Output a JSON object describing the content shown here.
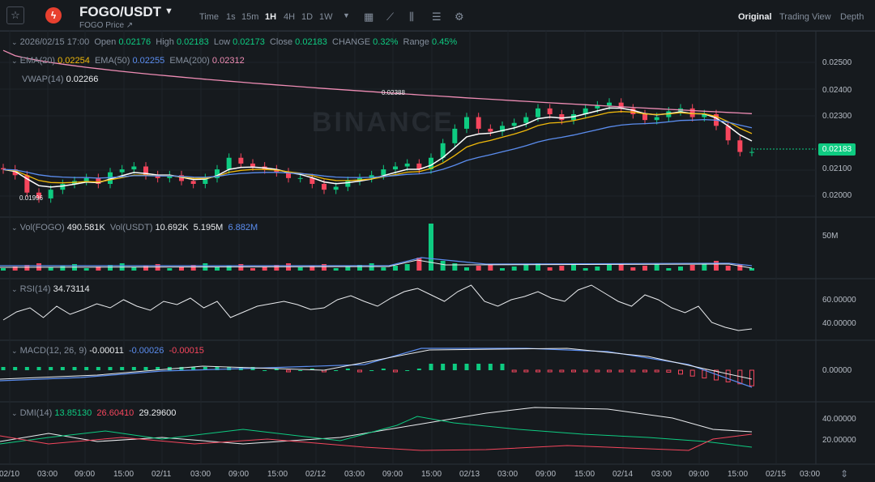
{
  "header": {
    "pair": "FOGO/USDT",
    "subtitle": "FOGO Price",
    "subtitle_link": "↗",
    "timeframes": [
      "Time",
      "1s",
      "15m",
      "1H",
      "4H",
      "1D",
      "1W"
    ],
    "active_timeframe": "1H",
    "views": [
      "Original",
      "Trading View",
      "Depth"
    ],
    "active_view": "Original"
  },
  "ohlc": {
    "date": "2026/02/15 17:00",
    "open_label": "Open",
    "open": "0.02176",
    "high_label": "High",
    "high": "0.02183",
    "low_label": "Low",
    "low": "0.02173",
    "close_label": "Close",
    "close": "0.02183",
    "change_label": "CHANGE",
    "change": "0.32%",
    "range_label": "Range",
    "range": "0.45%"
  },
  "ema": {
    "ema20_label": "EMA(20)",
    "ema20": "0.02254",
    "ema50_label": "EMA(50)",
    "ema50": "0.02255",
    "ema200_label": "EMA(200)",
    "ema200": "0.02312"
  },
  "vwap": {
    "label": "VWAP(14)",
    "value": "0.02266"
  },
  "volume": {
    "vol_label": "Vol(FOGO)",
    "vol_value": "490.581K",
    "usdt_label": "Vol(USDT)",
    "usdt_value": "10.692K",
    "ma1": "5.195M",
    "ma2": "6.882M",
    "axis_label": "50M"
  },
  "rsi": {
    "label": "RSI(14)",
    "value": "34.73114",
    "axis": [
      "60.00000",
      "40.00000"
    ]
  },
  "macd": {
    "label": "MACD(12, 26, 9)",
    "v1": "-0.00011",
    "v2": "-0.00026",
    "v3": "-0.00015",
    "axis": [
      "0.00000"
    ]
  },
  "dmi": {
    "label": "DMI(14)",
    "v1": "13.85130",
    "v2": "26.60410",
    "v3": "29.29600",
    "axis": [
      "40.00000",
      "20.00000"
    ]
  },
  "price_axis": [
    "0.02500",
    "0.02400",
    "0.02300",
    "0.02100",
    "0.02000"
  ],
  "last_price": "0.02183",
  "annotations": {
    "high": "0.02388",
    "low": "0.01996"
  },
  "watermark": "BINANCE",
  "time_axis": [
    "02/10",
    "03:00",
    "09:00",
    "15:00",
    "02/11",
    "03:00",
    "09:00",
    "15:00",
    "02/12",
    "03:00",
    "09:00",
    "15:00",
    "02/13",
    "03:00",
    "09:00",
    "15:00",
    "02/14",
    "03:00",
    "09:00",
    "15:00",
    "02/15",
    "03:00"
  ],
  "colors": {
    "up": "#0ecb81",
    "down": "#f6465d",
    "ema20": "#f0b90b",
    "ema50": "#5b8def",
    "ema200": "#ef8db5",
    "vwap": "#ffffff",
    "bg": "#161a1e"
  },
  "chart_data": {
    "type": "candlestick",
    "interval": "1H",
    "candles_approx": {
      "start": "02/10 00:00",
      "close_path": [
        0.0212,
        0.021,
        0.0204,
        0.0202,
        0.0205,
        0.0207,
        0.0208,
        0.0209,
        0.0207,
        0.0211,
        0.0212,
        0.0213,
        0.021,
        0.0209,
        0.021,
        0.0208,
        0.0207,
        0.0209,
        0.0212,
        0.0216,
        0.0214,
        0.0213,
        0.0212,
        0.0211,
        0.0209,
        0.0209,
        0.0207,
        0.0205,
        0.0206,
        0.0208,
        0.0209,
        0.021,
        0.0212,
        0.0213,
        0.0214,
        0.0212,
        0.0216,
        0.0221,
        0.0226,
        0.023,
        0.0226,
        0.0225,
        0.0227,
        0.0228,
        0.023,
        0.0233,
        0.0231,
        0.0229,
        0.0231,
        0.0233,
        0.0234,
        0.0235,
        0.0233,
        0.0231,
        0.0229,
        0.023,
        0.0232,
        0.0233,
        0.023,
        0.0231,
        0.0227,
        0.0222,
        0.0218,
        0.0218
      ]
    },
    "ylim": [
      0.0195,
      0.0255
    ]
  }
}
